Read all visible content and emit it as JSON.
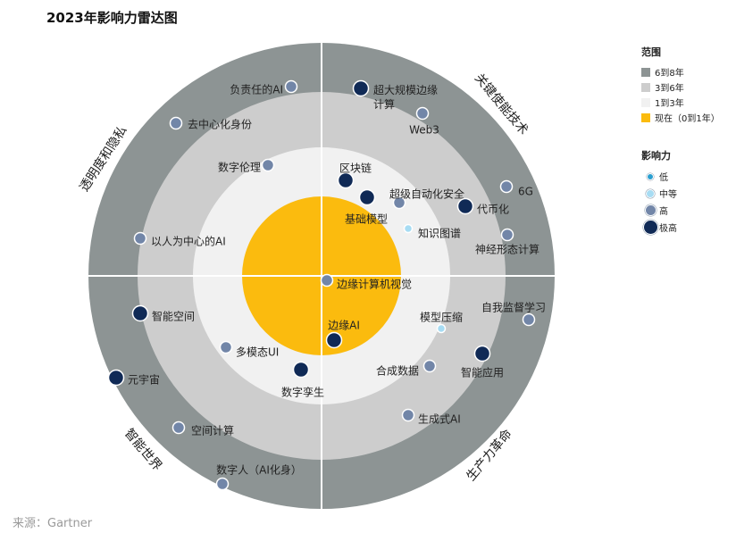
{
  "title": "2023年影响力雷达图",
  "source": "来源：Gartner",
  "legend": {
    "range_title": "范围",
    "ranges": [
      {
        "label": "6到8年",
        "color": "#8d9494"
      },
      {
        "label": "3到6年",
        "color": "#cdcdcd"
      },
      {
        "label": "1到3年",
        "color": "#f1f1f1"
      },
      {
        "label": "现在（0到1年）",
        "color": "#fbbb0e"
      }
    ],
    "impact_title": "影响力",
    "impacts": [
      {
        "label": "低",
        "color": "#2a9fd0"
      },
      {
        "label": "中等",
        "color": "#a7dcf3"
      },
      {
        "label": "高",
        "color": "#7286a8"
      },
      {
        "label": "极高",
        "color": "#102a56"
      }
    ]
  },
  "quadrants": [
    "透明度和隐私",
    "关键使能技术",
    "智能世界",
    "生产力革命"
  ],
  "technologies": [
    {
      "label": "负责任的AI",
      "impact": "high"
    },
    {
      "label": "超大规模边缘计算",
      "impact": "very-high"
    },
    {
      "label": "Web3",
      "impact": "high"
    },
    {
      "label": "去中心化身份",
      "impact": "high"
    },
    {
      "label": "数字伦理",
      "impact": "high"
    },
    {
      "label": "区块链",
      "impact": "very-high"
    },
    {
      "label": "超级自动化安全",
      "impact": "high"
    },
    {
      "label": "基础模型",
      "impact": "very-high"
    },
    {
      "label": "6G",
      "impact": "high"
    },
    {
      "label": "代币化",
      "impact": "very-high"
    },
    {
      "label": "知识图谱",
      "impact": "medium"
    },
    {
      "label": "神经形态计算",
      "impact": "high"
    },
    {
      "label": "以人为中心的AI",
      "impact": "high"
    },
    {
      "label": "边缘计算机视觉",
      "impact": "high"
    },
    {
      "label": "自我监督学习",
      "impact": "high"
    },
    {
      "label": "智能空间",
      "impact": "very-high"
    },
    {
      "label": "模型压缩",
      "impact": "medium"
    },
    {
      "label": "边缘AI",
      "impact": "very-high"
    },
    {
      "label": "多模态UI",
      "impact": "high"
    },
    {
      "label": "智能应用",
      "impact": "very-high"
    },
    {
      "label": "合成数据",
      "impact": "high"
    },
    {
      "label": "元宇宙",
      "impact": "very-high"
    },
    {
      "label": "数字孪生",
      "impact": "very-high"
    },
    {
      "label": "生成式AI",
      "impact": "high"
    },
    {
      "label": "空间计算",
      "impact": "high"
    },
    {
      "label": "数字人（AI化身）",
      "impact": "high"
    }
  ]
}
